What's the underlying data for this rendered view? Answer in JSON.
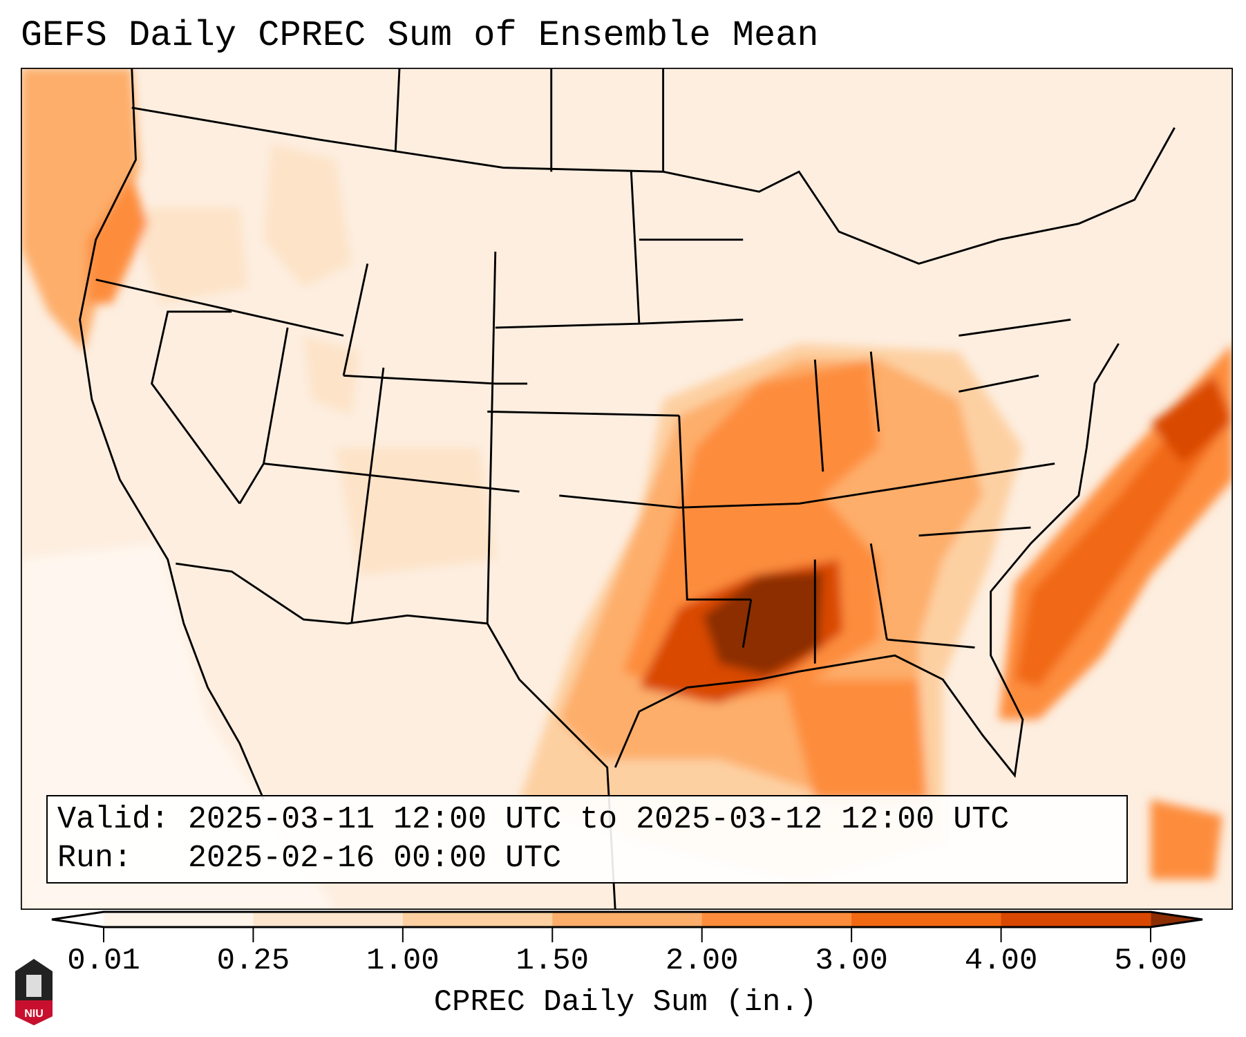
{
  "title": "GEFS Daily CPREC Sum of Ensemble Mean",
  "info": {
    "valid_label": "Valid:",
    "valid_value": "2025-03-11 12:00 UTC to 2025-03-12 12:00 UTC",
    "run_label": "Run:",
    "run_value": "2025-02-16 00:00 UTC"
  },
  "colorbar": {
    "label": "CPREC Daily Sum (in.)",
    "ticks": [
      "0.01",
      "0.25",
      "1.00",
      "1.50",
      "2.00",
      "3.00",
      "4.00",
      "5.00"
    ],
    "colors": [
      "#fff5eb",
      "#fee6ce",
      "#fdd0a2",
      "#fdae6b",
      "#fd8d3c",
      "#f16913",
      "#d94801"
    ],
    "under_color": "#ffffff",
    "over_color": "#8c2d04"
  },
  "logo": {
    "text": "NIU"
  }
}
